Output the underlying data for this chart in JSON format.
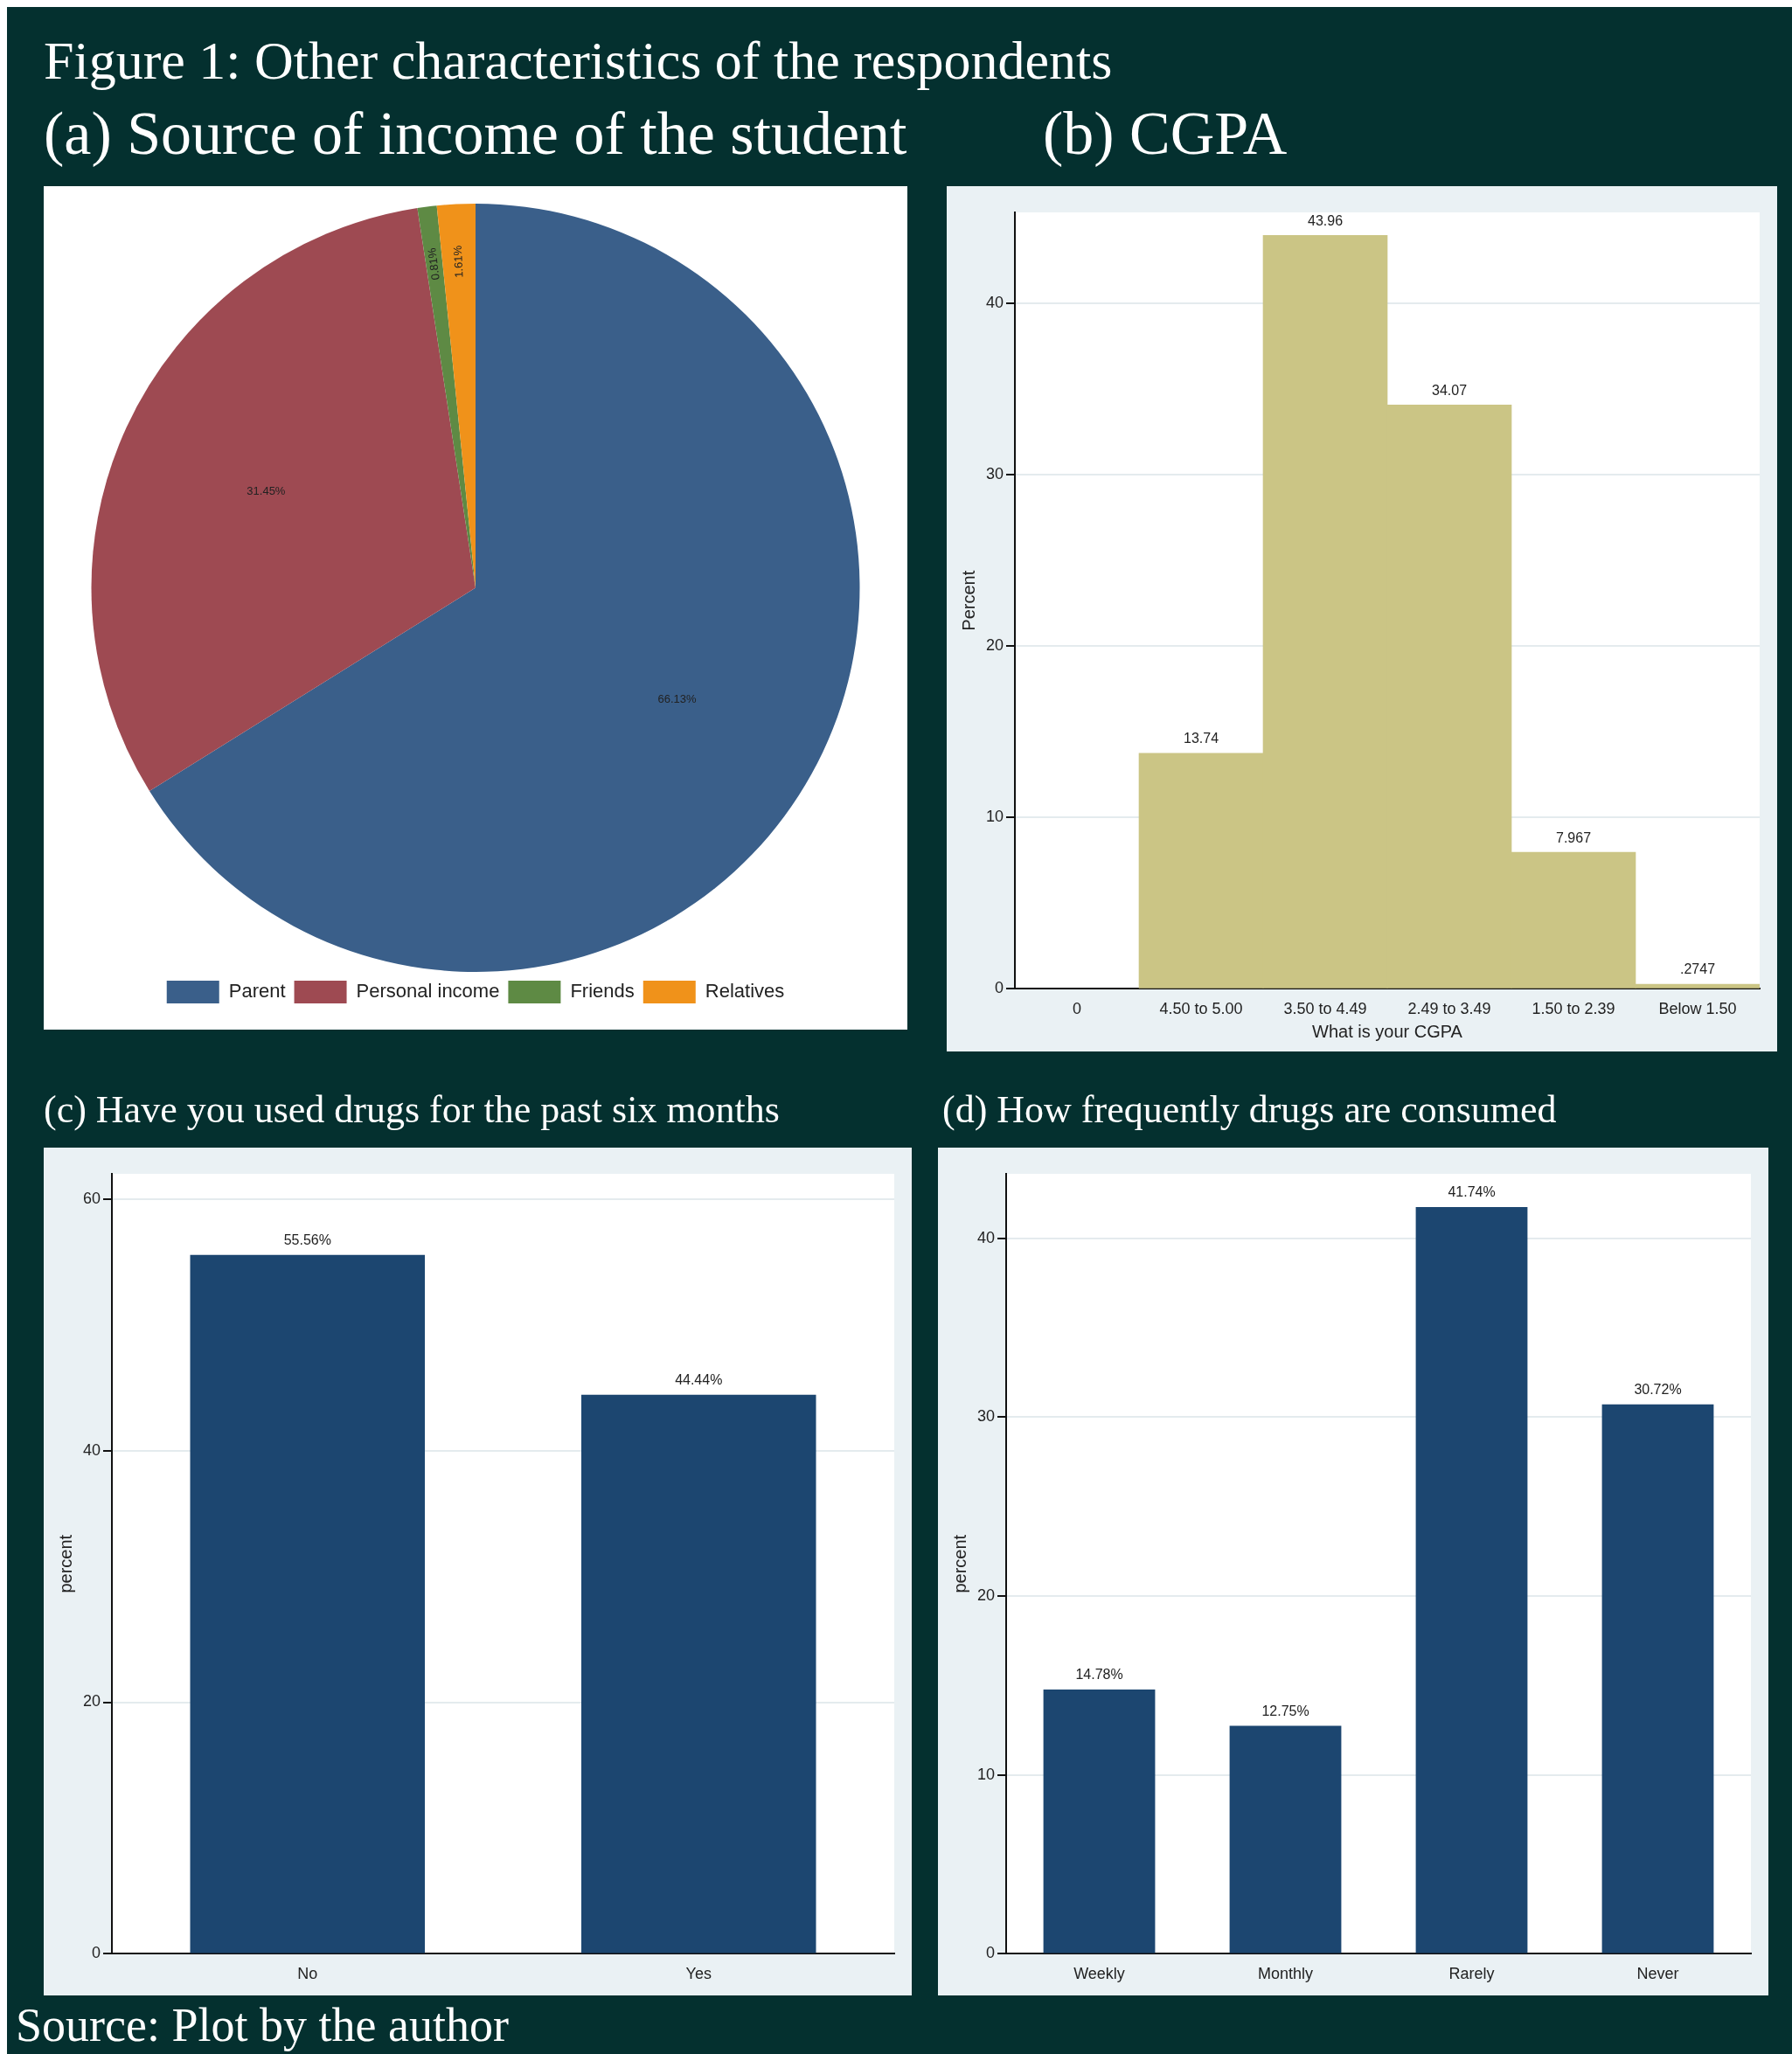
{
  "chart_data": [
    {
      "type": "pie",
      "title": "Figure 1: Other characteristics of the respondents",
      "subtitle": "(a) Source of income of the student",
      "categories": [
        "Parent",
        "Personal income",
        "Friends",
        "Relatives"
      ],
      "values": [
        66.13,
        31.45,
        0.81,
        1.61
      ],
      "colors": [
        "#3a5f8a",
        "#9e4a52",
        "#5e8a44",
        "#f0921a"
      ],
      "value_labels": [
        "66.13%",
        "31.45%",
        "0.81%",
        "1.61%"
      ],
      "legend": "bottom"
    },
    {
      "type": "bar",
      "subtitle": "(b) CGPA",
      "categories": [
        "0",
        "4.50 to 5.00",
        "3.50 to 4.49",
        "2.49 to 3.49",
        "1.50 to 2.39",
        "Below 1.50"
      ],
      "values": [
        null,
        13.74,
        43.96,
        34.07,
        7.967,
        0.2747
      ],
      "value_labels": [
        null,
        "13.74",
        "43.96",
        "34.07",
        "7.967",
        ".2747"
      ],
      "color": "#cbc585",
      "xlabel": "What is your CGPA",
      "ylabel": "Percent",
      "ylim": [
        0,
        45.3
      ],
      "yticks": [
        0,
        10,
        20,
        30,
        40
      ],
      "grid": "y"
    },
    {
      "type": "bar",
      "subtitle": "(c) Have you used drugs for the past six months",
      "categories": [
        "No",
        "Yes"
      ],
      "values": [
        55.56,
        44.44
      ],
      "value_labels": [
        "55.56%",
        "44.44%"
      ],
      "color": "#1c4670",
      "ylabel": "percent",
      "ylim": [
        0,
        62
      ],
      "yticks": [
        0,
        20,
        40,
        60
      ],
      "grid": "y"
    },
    {
      "type": "bar",
      "subtitle": "(d) How frequently drugs are consumed",
      "categories": [
        "Weekly",
        "Monthly",
        "Rarely",
        "Never"
      ],
      "values": [
        14.78,
        12.75,
        41.74,
        30.72
      ],
      "value_labels": [
        "14.78%",
        "12.75%",
        "41.74%",
        "30.72%"
      ],
      "color": "#1c4670",
      "ylabel": "percent",
      "ylim": [
        0,
        43.6
      ],
      "yticks": [
        0,
        10,
        20,
        30,
        40
      ],
      "grid": "y",
      "annotations": [
        "Source: Plot by the author"
      ]
    }
  ]
}
